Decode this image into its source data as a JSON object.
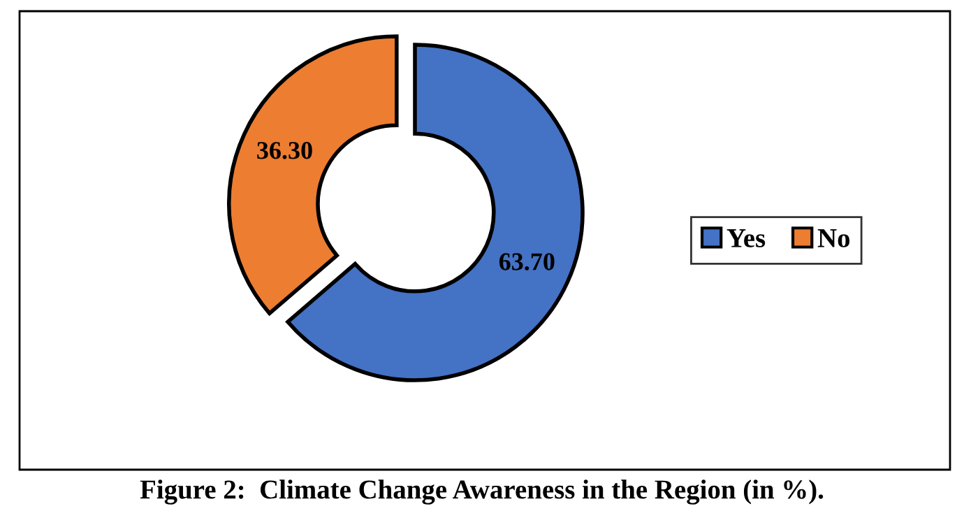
{
  "chart_data": {
    "type": "donut",
    "title": "Figure 2:  Climate Change Awareness in the Region (in %).",
    "categories": [
      "Yes",
      "No"
    ],
    "values": [
      63.7,
      36.3
    ],
    "colors": [
      "#4472c4",
      "#ed7d31"
    ],
    "value_labels": [
      "63.70",
      "36.30"
    ],
    "legend": "right"
  }
}
